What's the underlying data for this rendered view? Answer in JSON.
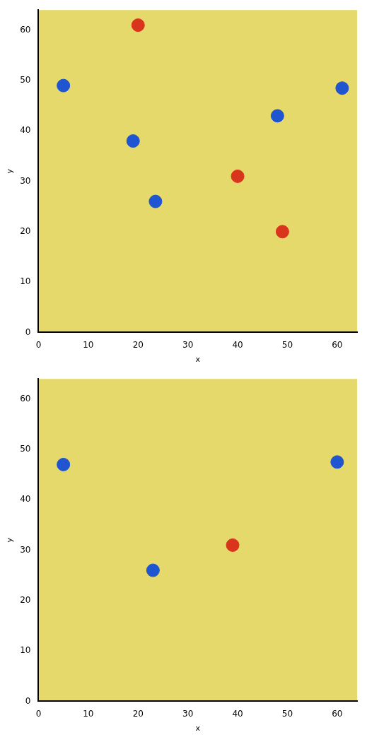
{
  "chart_data": [
    {
      "type": "scatter",
      "x_label": "x",
      "y_label": "y",
      "xlim": [
        0,
        64
      ],
      "ylim": [
        0,
        64
      ],
      "xticks": [
        0,
        10,
        20,
        30,
        40,
        50,
        60
      ],
      "yticks": [
        0,
        10,
        20,
        30,
        40,
        50,
        60
      ],
      "grid": false,
      "series": [
        {
          "color": "#1f55d0",
          "marker": "circle",
          "x": [
            5,
            23.5,
            61,
            48,
            19
          ],
          "values": [
            49,
            26,
            48.5,
            43,
            38
          ]
        },
        {
          "color": "#d9341c",
          "marker": "circle",
          "x": [
            40,
            49,
            20
          ],
          "values": [
            31,
            20,
            61
          ]
        }
      ]
    },
    {
      "type": "scatter",
      "x_label": "x",
      "y_label": "y",
      "xlim": [
        0,
        64
      ],
      "ylim": [
        0,
        64
      ],
      "xticks": [
        0,
        10,
        20,
        30,
        40,
        50,
        60
      ],
      "yticks": [
        0,
        10,
        20,
        30,
        40,
        50,
        60
      ],
      "grid": false,
      "series": [
        {
          "color": "#1f55d0",
          "marker": "circle",
          "x": [
            5,
            23,
            60
          ],
          "values": [
            47,
            26,
            47.5
          ]
        },
        {
          "color": "#d9341c",
          "marker": "circle",
          "x": [
            39
          ],
          "values": [
            31
          ]
        }
      ]
    }
  ]
}
